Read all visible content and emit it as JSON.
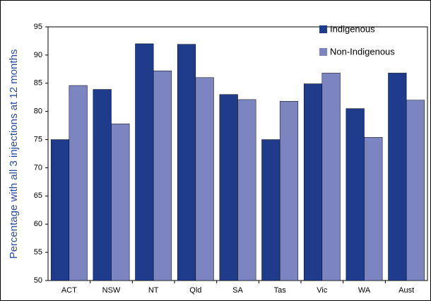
{
  "chart_data": {
    "type": "bar",
    "y_label": "Percentage with all 3 injections at 12 months",
    "categories": [
      "ACT",
      "NSW",
      "NT",
      "Qld",
      "SA",
      "Tas",
      "Vic",
      "WA",
      "Aust"
    ],
    "series": [
      {
        "name": "Indigenous",
        "color": "#1f3c8c",
        "values": [
          75,
          83.9,
          92,
          91.9,
          83,
          75,
          84.9,
          80.5,
          86.8
        ]
      },
      {
        "name": "Non-Indigenous",
        "color": "#7d85c1",
        "values": [
          84.6,
          77.8,
          87.2,
          86,
          82.1,
          81.8,
          86.8,
          75.4,
          82
        ]
      }
    ],
    "ylim": [
      50,
      95
    ],
    "yticks": [
      50,
      55,
      60,
      65,
      70,
      75,
      80,
      85,
      90,
      95
    ],
    "legend": "top-right"
  }
}
